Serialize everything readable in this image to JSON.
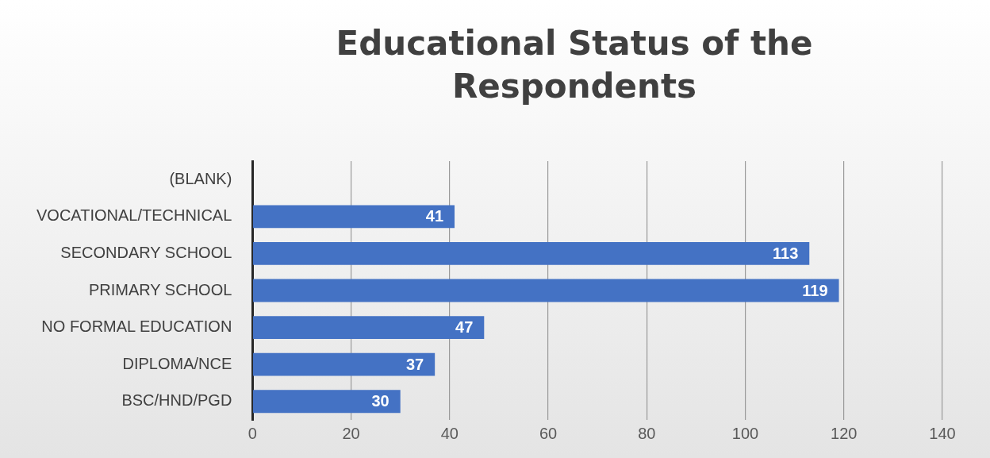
{
  "chart_data": {
    "type": "bar",
    "orientation": "horizontal",
    "title": "Educational Status of the Respondents",
    "categories": [
      "(BLANK)",
      "VOCATIONAL/TECHNICAL",
      "SECONDARY SCHOOL",
      "PRIMARY SCHOOL",
      "NO FORMAL EDUCATION",
      "DIPLOMA/NCE",
      "BSC/HND/PGD"
    ],
    "values": [
      null,
      41,
      113,
      119,
      47,
      37,
      30
    ],
    "color": "#4472c4",
    "xlim": [
      0,
      140
    ],
    "xticks": [
      0,
      20,
      40,
      60,
      80,
      100,
      120,
      140
    ],
    "grid": "x",
    "data_labels": true,
    "legend": false
  }
}
